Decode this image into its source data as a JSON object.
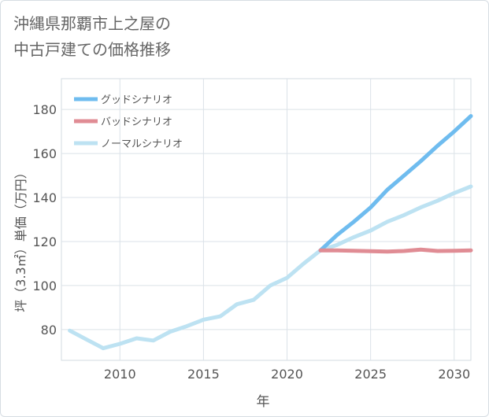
{
  "title_lines": [
    "沖縄県那覇市上之屋の",
    "中古戸建ての価格推移"
  ],
  "chart_data": {
    "type": "line",
    "title": "沖縄県那覇市上之屋の中古戸建ての価格推移",
    "xlabel": "年",
    "ylabel": "坪（3.3㎡）単価（万円）",
    "xlim": [
      2006.5,
      2031
    ],
    "ylim": [
      66,
      194
    ],
    "x_ticks": [
      2010,
      2015,
      2020,
      2025,
      2030
    ],
    "y_ticks": [
      80,
      100,
      120,
      140,
      160,
      180
    ],
    "grid": true,
    "legend_position": "top-left",
    "series": [
      {
        "name": "グッドシナリオ",
        "color": "#6fbcef",
        "x": [
          2022,
          2023,
          2024,
          2025,
          2026,
          2027,
          2028,
          2029,
          2030,
          2031
        ],
        "y": [
          116,
          123,
          129,
          135.5,
          143.5,
          150,
          156.5,
          163.5,
          170,
          177
        ]
      },
      {
        "name": "バッドシナリオ",
        "color": "#e08c94",
        "x": [
          2022,
          2023,
          2024,
          2025,
          2026,
          2027,
          2028,
          2029,
          2030,
          2031
        ],
        "y": [
          116,
          116,
          115.8,
          115.6,
          115.4,
          115.7,
          116.3,
          115.7,
          115.8,
          116
        ]
      },
      {
        "name": "ノーマルシナリオ",
        "color": "#bde2f2",
        "x": [
          2007,
          2008,
          2009,
          2010,
          2011,
          2012,
          2013,
          2014,
          2015,
          2016,
          2017,
          2018,
          2019,
          2020,
          2021,
          2022,
          2023,
          2024,
          2025,
          2026,
          2027,
          2028,
          2029,
          2030,
          2031
        ],
        "y": [
          79.5,
          75.5,
          71.5,
          73.5,
          76,
          75,
          79,
          81.5,
          84.5,
          86,
          91.5,
          93.5,
          100,
          103.5,
          110,
          116,
          118.5,
          122,
          125,
          129,
          132,
          135.5,
          138.5,
          142,
          145
        ]
      }
    ]
  }
}
